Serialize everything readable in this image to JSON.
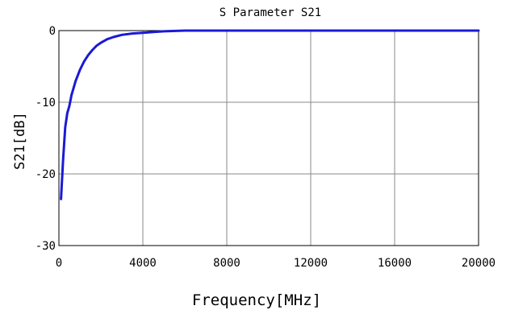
{
  "chart_data": {
    "type": "line",
    "title": "S Parameter S21",
    "xlabel": "Frequency[MHz]",
    "ylabel": "S21[dB]",
    "xlim": [
      0,
      20000
    ],
    "ylim": [
      -30,
      0
    ],
    "x_ticks": [
      0,
      4000,
      8000,
      12000,
      16000,
      20000
    ],
    "y_ticks": [
      0,
      -10,
      -20,
      -30
    ],
    "x_tick_labels": [
      "0",
      "4000",
      "8000",
      "12000",
      "16000",
      "20000"
    ],
    "y_tick_labels": [
      "0",
      "-10",
      "-20",
      "-30"
    ],
    "grid": true,
    "line_color": "#1a1ad6",
    "series": [
      {
        "x": [
          100,
          200,
          300,
          400,
          500,
          600,
          700,
          800,
          1000,
          1200,
          1400,
          1600,
          1800,
          2000,
          2300,
          2600,
          3000,
          3500,
          4000,
          4500,
          5000,
          6000,
          7000,
          8000,
          10000,
          12000,
          14000,
          16000,
          17800,
          18000,
          20000
        ],
        "y": [
          -23.5,
          -18,
          -13.5,
          -11.5,
          -10.5,
          -9,
          -8,
          -7,
          -5.5,
          -4.3,
          -3.4,
          -2.7,
          -2.1,
          -1.7,
          -1.2,
          -0.9,
          -0.6,
          -0.4,
          -0.3,
          -0.2,
          -0.1,
          0.1,
          0.1,
          0.1,
          0.1,
          0.1,
          0.1,
          0.1,
          0.1,
          0,
          0
        ]
      }
    ]
  }
}
